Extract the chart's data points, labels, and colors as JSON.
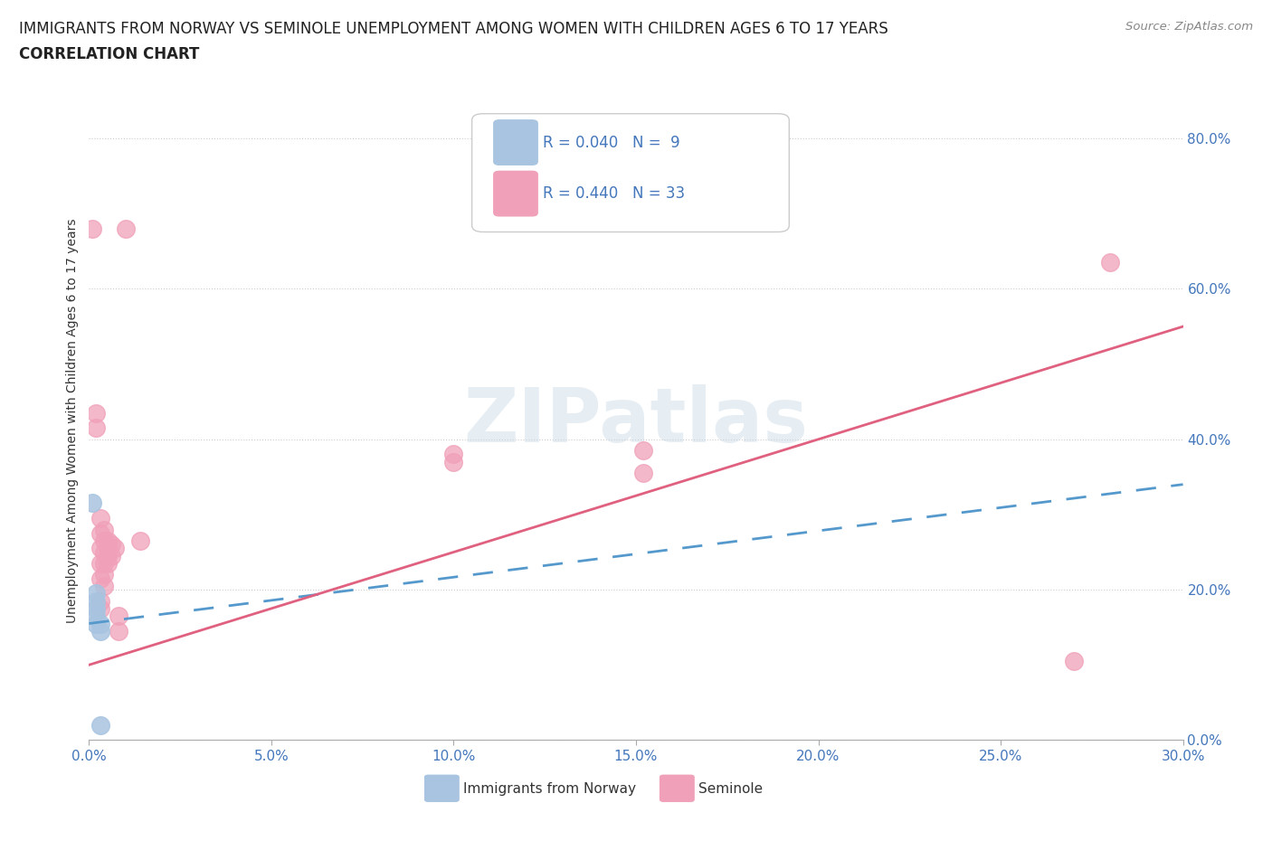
{
  "title": "IMMIGRANTS FROM NORWAY VS SEMINOLE UNEMPLOYMENT AMONG WOMEN WITH CHILDREN AGES 6 TO 17 YEARS",
  "subtitle": "CORRELATION CHART",
  "source": "Source: ZipAtlas.com",
  "xlabel_ticks": [
    "0.0%",
    "5.0%",
    "10.0%",
    "15.0%",
    "20.0%",
    "25.0%",
    "30.0%"
  ],
  "ylabel_ticks": [
    "0.0%",
    "20.0%",
    "40.0%",
    "60.0%",
    "80.0%"
  ],
  "ylabel_label": "Unemployment Among Women with Children Ages 6 to 17 years",
  "xlim": [
    0.0,
    0.3
  ],
  "ylim": [
    0.0,
    0.85
  ],
  "watermark": "ZIPatlas",
  "norway_R": 0.04,
  "norway_N": 9,
  "seminole_R": 0.44,
  "seminole_N": 33,
  "norway_color": "#a8c4e0",
  "seminole_color": "#f0a0b8",
  "norway_line_color": "#5599cc",
  "seminole_line_color": "#e06080",
  "norway_trendline": [
    [
      0.0,
      0.155
    ],
    [
      0.3,
      0.34
    ]
  ],
  "seminole_trendline": [
    [
      0.0,
      0.1
    ],
    [
      0.3,
      0.55
    ]
  ],
  "norway_scatter": [
    [
      0.001,
      0.315
    ],
    [
      0.002,
      0.195
    ],
    [
      0.002,
      0.185
    ],
    [
      0.002,
      0.175
    ],
    [
      0.002,
      0.165
    ],
    [
      0.002,
      0.155
    ],
    [
      0.003,
      0.155
    ],
    [
      0.003,
      0.145
    ],
    [
      0.003,
      0.02
    ]
  ],
  "seminole_scatter": [
    [
      0.001,
      0.68
    ],
    [
      0.002,
      0.435
    ],
    [
      0.002,
      0.415
    ],
    [
      0.003,
      0.295
    ],
    [
      0.003,
      0.275
    ],
    [
      0.003,
      0.255
    ],
    [
      0.003,
      0.235
    ],
    [
      0.003,
      0.215
    ],
    [
      0.003,
      0.185
    ],
    [
      0.003,
      0.175
    ],
    [
      0.004,
      0.28
    ],
    [
      0.004,
      0.265
    ],
    [
      0.004,
      0.25
    ],
    [
      0.004,
      0.235
    ],
    [
      0.004,
      0.22
    ],
    [
      0.004,
      0.205
    ],
    [
      0.005,
      0.265
    ],
    [
      0.005,
      0.255
    ],
    [
      0.005,
      0.245
    ],
    [
      0.005,
      0.235
    ],
    [
      0.006,
      0.26
    ],
    [
      0.006,
      0.245
    ],
    [
      0.007,
      0.255
    ],
    [
      0.008,
      0.165
    ],
    [
      0.008,
      0.145
    ],
    [
      0.01,
      0.68
    ],
    [
      0.014,
      0.265
    ],
    [
      0.1,
      0.38
    ],
    [
      0.1,
      0.37
    ],
    [
      0.152,
      0.385
    ],
    [
      0.152,
      0.355
    ],
    [
      0.27,
      0.105
    ],
    [
      0.28,
      0.635
    ]
  ]
}
